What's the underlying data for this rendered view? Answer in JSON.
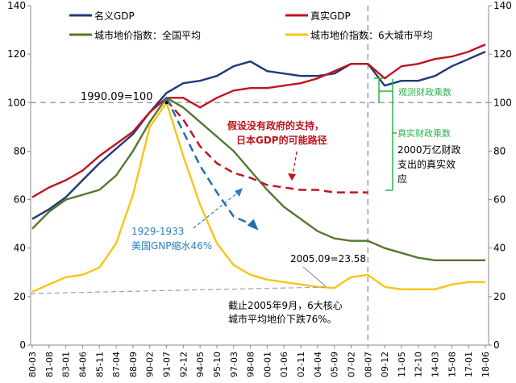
{
  "chart_data": {
    "type": "line",
    "x_ticks": [
      "80-03",
      "81-08",
      "83-01",
      "84-06",
      "85-11",
      "87-04",
      "88-09",
      "90-02",
      "91-07",
      "92-12",
      "94-05",
      "95-10",
      "97-03",
      "98-08",
      "00-01",
      "01-06",
      "02-11",
      "04-04",
      "05-09",
      "07-02",
      "08-07",
      "09-12",
      "11-05",
      "12-10",
      "14-03",
      "15-08",
      "17-01",
      "18-06"
    ],
    "y_ticks": [
      "0",
      "20",
      "40",
      "60",
      "80",
      "100",
      "120",
      "140"
    ],
    "ylim": [
      0,
      140
    ],
    "grid": false,
    "legend_position": "top",
    "series": [
      {
        "name": "名义GDP",
        "color": "#1f3a78",
        "points": [
          [
            "80-03",
            52
          ],
          [
            "81-08",
            56
          ],
          [
            "83-01",
            61
          ],
          [
            "84-06",
            68
          ],
          [
            "85-11",
            75
          ],
          [
            "87-04",
            81
          ],
          [
            "88-09",
            87
          ],
          [
            "90-02",
            96
          ],
          [
            "91-07",
            104
          ],
          [
            "92-12",
            108
          ],
          [
            "94-05",
            109
          ],
          [
            "95-10",
            111
          ],
          [
            "97-03",
            115
          ],
          [
            "98-08",
            117
          ],
          [
            "00-01",
            113
          ],
          [
            "01-06",
            112
          ],
          [
            "02-11",
            111
          ],
          [
            "04-04",
            111
          ],
          [
            "05-09",
            112
          ],
          [
            "07-02",
            116
          ],
          [
            "08-07",
            116
          ],
          [
            "09-12",
            107
          ],
          [
            "11-05",
            109
          ],
          [
            "12-10",
            109
          ],
          [
            "14-03",
            111
          ],
          [
            "15-08",
            115
          ],
          [
            "17-01",
            118
          ],
          [
            "18-06",
            121
          ]
        ]
      },
      {
        "name": "真实GDP",
        "color": "#c0141e",
        "points": [
          [
            "80-03",
            61
          ],
          [
            "81-08",
            65
          ],
          [
            "83-01",
            68
          ],
          [
            "84-06",
            72
          ],
          [
            "85-11",
            78
          ],
          [
            "87-04",
            83
          ],
          [
            "88-09",
            88
          ],
          [
            "90-02",
            96
          ],
          [
            "91-07",
            102
          ],
          [
            "92-12",
            102
          ],
          [
            "94-05",
            98
          ],
          [
            "95-10",
            102
          ],
          [
            "97-03",
            105
          ],
          [
            "98-08",
            106
          ],
          [
            "00-01",
            106
          ],
          [
            "01-06",
            107
          ],
          [
            "02-11",
            108
          ],
          [
            "04-04",
            110
          ],
          [
            "05-09",
            113
          ],
          [
            "07-02",
            116
          ],
          [
            "08-07",
            116
          ],
          [
            "09-12",
            110
          ],
          [
            "11-05",
            115
          ],
          [
            "12-10",
            116
          ],
          [
            "14-03",
            118
          ],
          [
            "15-08",
            119
          ],
          [
            "17-01",
            121
          ],
          [
            "18-06",
            124
          ]
        ]
      },
      {
        "name": "城市地价指数：全国平均",
        "color": "#55772d",
        "points": [
          [
            "80-03",
            48
          ],
          [
            "81-08",
            55
          ],
          [
            "83-01",
            60
          ],
          [
            "84-06",
            62
          ],
          [
            "85-11",
            64
          ],
          [
            "87-04",
            70
          ],
          [
            "88-09",
            80
          ],
          [
            "90-02",
            92
          ],
          [
            "91-07",
            102
          ],
          [
            "92-12",
            98
          ],
          [
            "94-05",
            92
          ],
          [
            "95-10",
            86
          ],
          [
            "97-03",
            80
          ],
          [
            "98-08",
            72
          ],
          [
            "00-01",
            64
          ],
          [
            "01-06",
            57
          ],
          [
            "02-11",
            52
          ],
          [
            "04-04",
            47
          ],
          [
            "05-09",
            44
          ],
          [
            "07-02",
            43
          ],
          [
            "08-07",
            43
          ],
          [
            "09-12",
            40
          ],
          [
            "11-05",
            38
          ],
          [
            "12-10",
            36
          ],
          [
            "14-03",
            35
          ],
          [
            "15-08",
            35
          ],
          [
            "17-01",
            35
          ],
          [
            "18-06",
            35
          ]
        ]
      },
      {
        "name": "城市地价指数：6大城市平均",
        "color": "#f5c518",
        "points": [
          [
            "80-03",
            22
          ],
          [
            "81-08",
            25
          ],
          [
            "83-01",
            28
          ],
          [
            "84-06",
            29
          ],
          [
            "85-11",
            32
          ],
          [
            "87-04",
            42
          ],
          [
            "88-09",
            62
          ],
          [
            "90-02",
            90
          ],
          [
            "91-07",
            100
          ],
          [
            "92-12",
            78
          ],
          [
            "94-05",
            58
          ],
          [
            "95-10",
            42
          ],
          [
            "97-03",
            33
          ],
          [
            "98-08",
            29
          ],
          [
            "00-01",
            27
          ],
          [
            "01-06",
            26
          ],
          [
            "02-11",
            25
          ],
          [
            "04-04",
            24
          ],
          [
            "05-09",
            23.58
          ],
          [
            "07-02",
            28
          ],
          [
            "08-07",
            29
          ],
          [
            "09-12",
            24
          ],
          [
            "11-05",
            23
          ],
          [
            "12-10",
            23
          ],
          [
            "14-03",
            23
          ],
          [
            "15-08",
            25
          ],
          [
            "17-01",
            26
          ],
          [
            "18-06",
            26
          ]
        ]
      },
      {
        "name": "",
        "style": "dashed",
        "color": "#c0141e",
        "points": [
          [
            "91-07",
            101
          ],
          [
            "92-12",
            93
          ],
          [
            "94-05",
            82
          ],
          [
            "95-10",
            75
          ],
          [
            "97-03",
            71
          ],
          [
            "98-08",
            69
          ],
          [
            "00-01",
            66
          ],
          [
            "01-06",
            65
          ],
          [
            "02-11",
            64
          ],
          [
            "04-04",
            64
          ],
          [
            "05-09",
            63
          ],
          [
            "07-02",
            63
          ],
          [
            "08-07",
            63
          ]
        ]
      },
      {
        "name": "",
        "style": "dashed",
        "color": "#1f6fb0",
        "points": [
          [
            "91-07",
            102
          ],
          [
            "92-12",
            88
          ],
          [
            "94-05",
            74
          ],
          [
            "95-10",
            63
          ],
          [
            "97-03",
            53
          ],
          [
            "98-08",
            50
          ]
        ]
      }
    ],
    "reference_lines": [
      {
        "axis": "y",
        "value": 100,
        "color": "#a096c8",
        "style": "dashed"
      },
      {
        "axis": "x",
        "value": "08-07",
        "color": "#a096c8",
        "style": "dashed"
      }
    ],
    "legend": [
      "名义GDP",
      "真实GDP",
      "城市地价指数：全国平均",
      "城市地价指数：6大城市平均"
    ],
    "annotations": {
      "peak": "1990.09=100",
      "counterfactual": [
        "假设没有政府的支持，",
        "日本GDP的可能路径"
      ],
      "us_crash": [
        "1929-1933",
        "美国GNP缩水46%"
      ],
      "low": "2005.09=23.58",
      "decline": [
        "截止2005年9月，6大核心",
        "城市平均地价下跌76%。"
      ],
      "observed_multiplier": "观测财政乘数",
      "true_multiplier": "真实财政乘数",
      "fiscal_effect": [
        "2000万亿财政",
        "支出的真实效",
        "应"
      ]
    }
  }
}
